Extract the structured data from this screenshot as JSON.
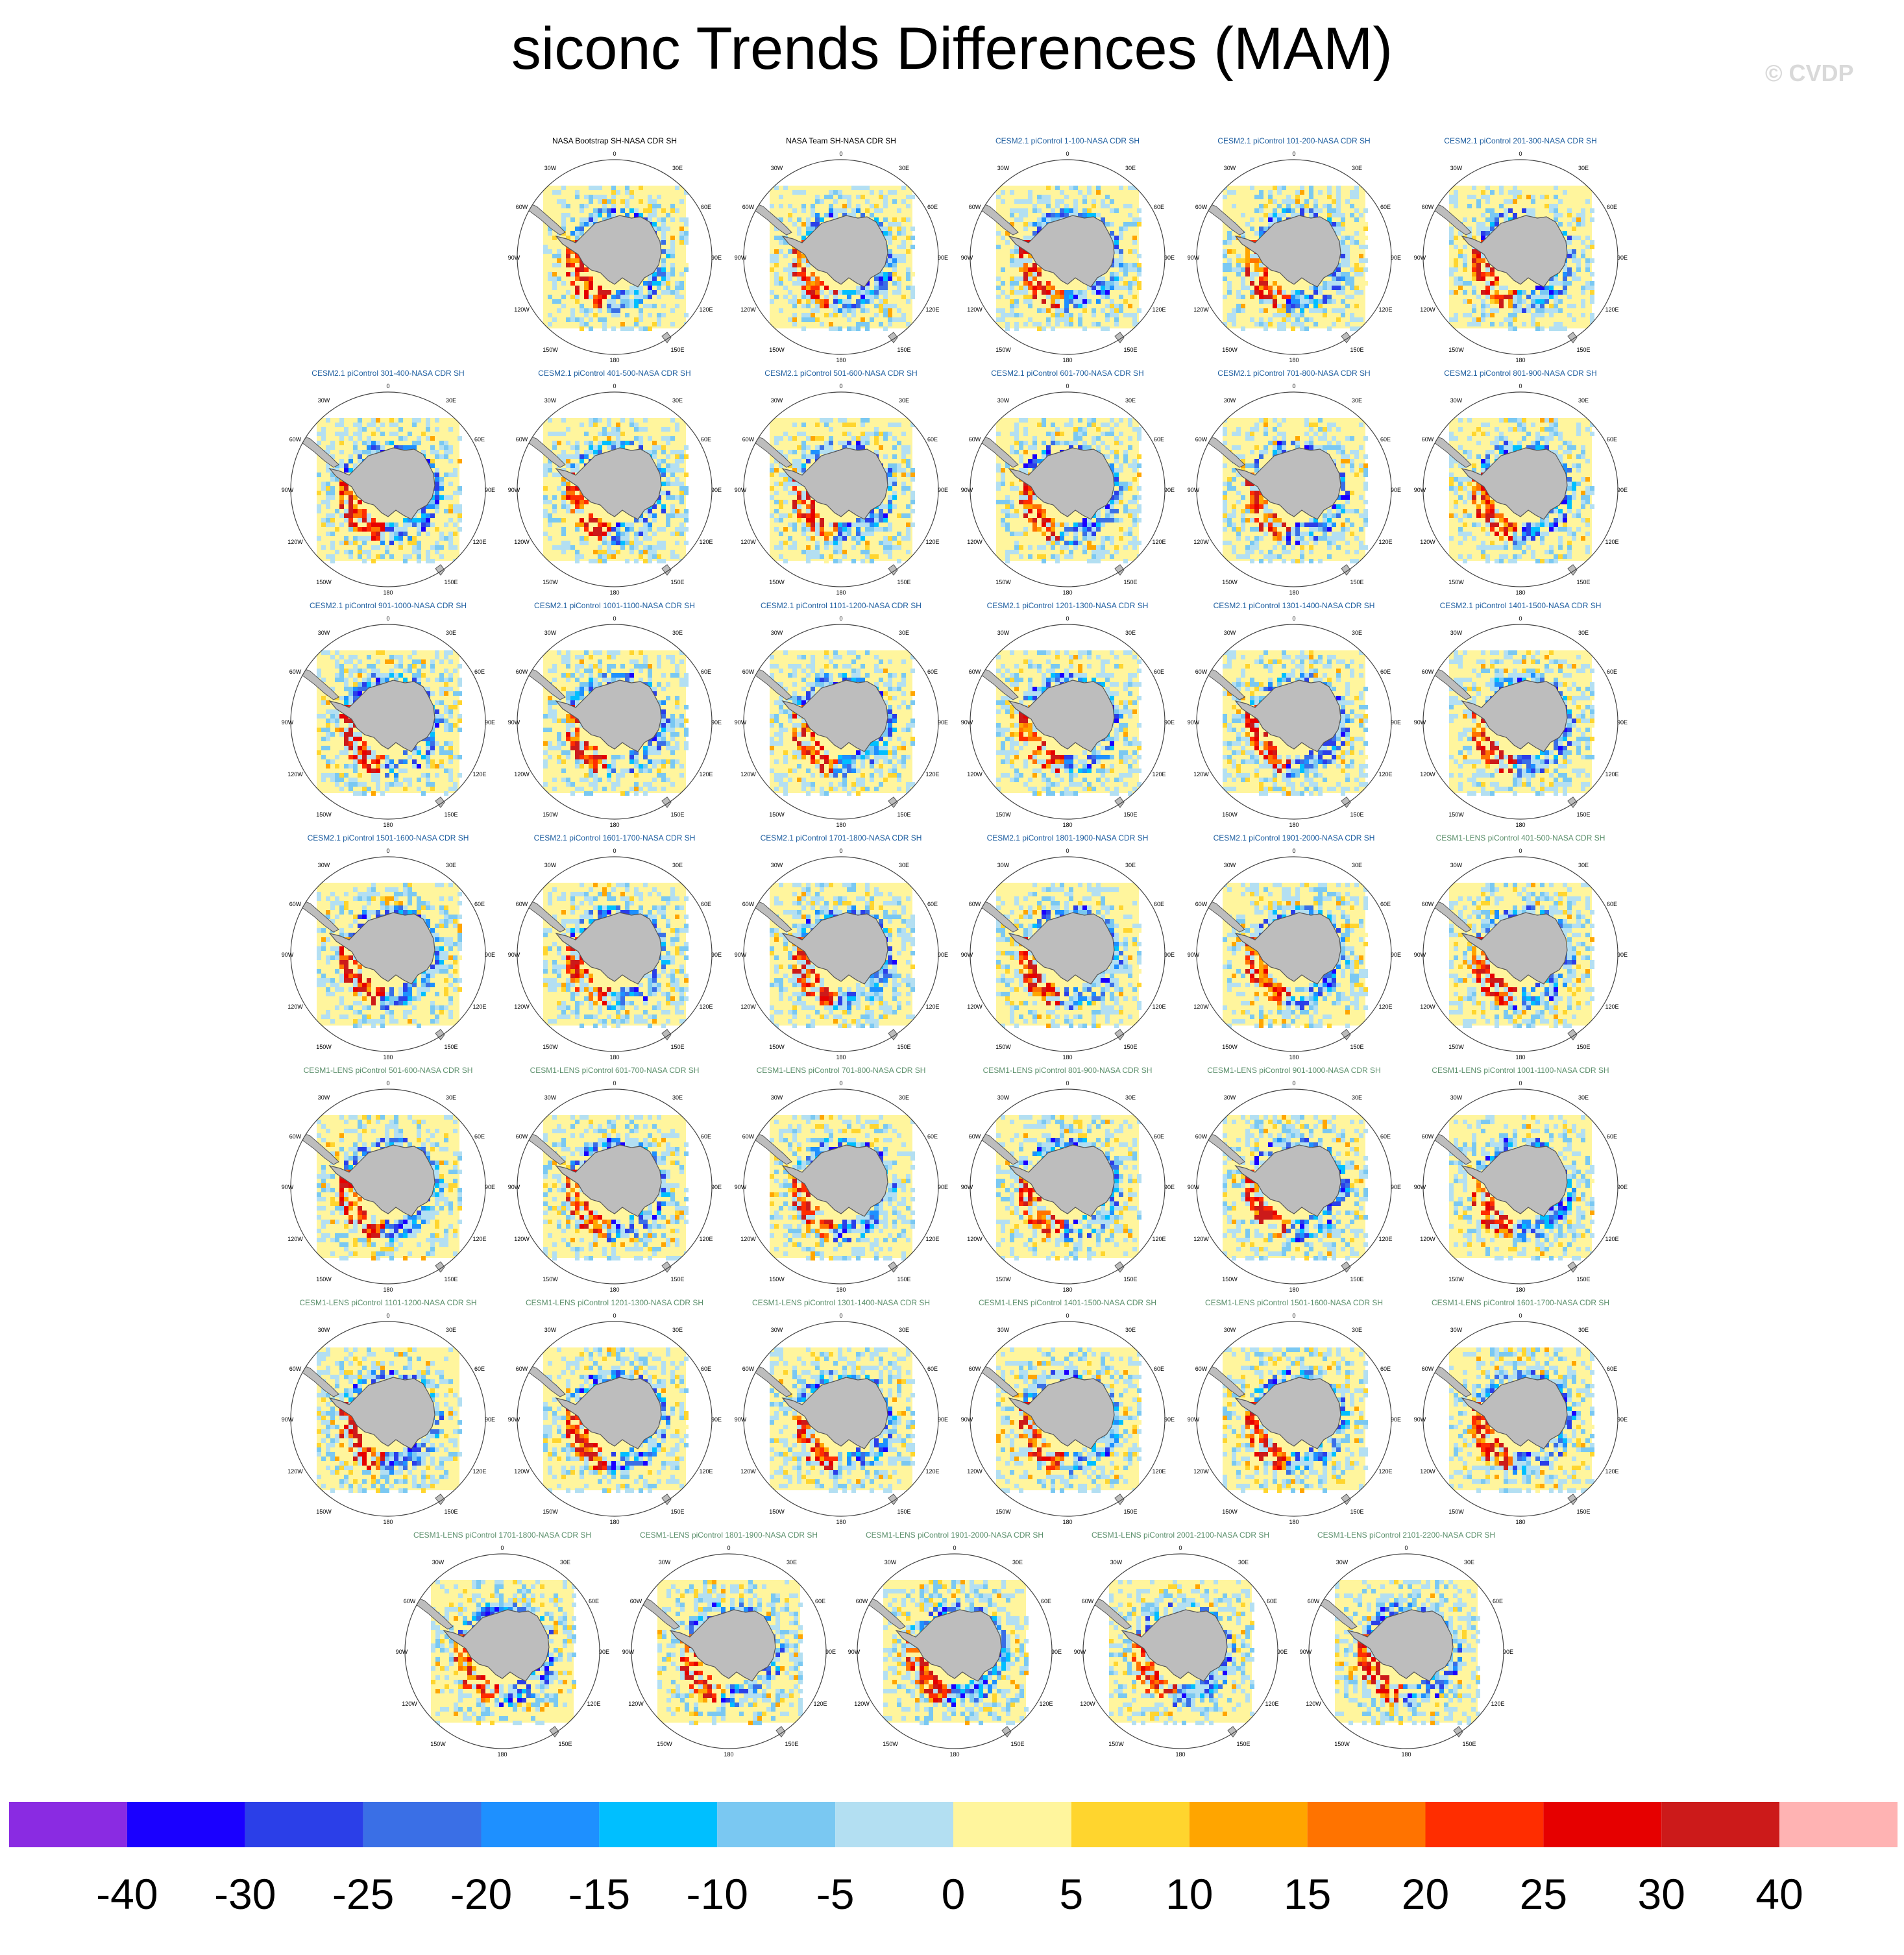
{
  "title": "siconc Trends Differences (MAM)",
  "watermark": "© CVDP",
  "colors": {
    "land": "#bdbdbd",
    "ocean_bg": "#fff59d",
    "title_obs": "#000000",
    "title_cesm2": "#1f5fa0",
    "title_cesm1": "#5b8f6b"
  },
  "map_labels": {
    "top": "0",
    "bottom": "180",
    "left": "90W",
    "right": "90E",
    "upper_left": "30W",
    "upper_right": "30E",
    "mid_left_upper": "60W",
    "mid_right_upper": "60E",
    "mid_left_lower": "120W",
    "mid_right_lower": "120E",
    "lower_left": "150W",
    "lower_right": "150E"
  },
  "rows": [
    {
      "panels": [
        {
          "title": "NASA Bootstrap SH-NASA CDR SH",
          "group": "obs",
          "seed": 1
        },
        {
          "title": "NASA Team SH-NASA CDR SH",
          "group": "obs",
          "seed": 2
        },
        {
          "title": "CESM2.1 piControl 1-100-NASA CDR SH",
          "group": "cesm2",
          "seed": 3
        },
        {
          "title": "CESM2.1 piControl 101-200-NASA CDR SH",
          "group": "cesm2",
          "seed": 4
        },
        {
          "title": "CESM2.1 piControl 201-300-NASA CDR SH",
          "group": "cesm2",
          "seed": 5
        }
      ]
    },
    {
      "panels": [
        {
          "title": "CESM2.1 piControl 301-400-NASA CDR SH",
          "group": "cesm2",
          "seed": 6
        },
        {
          "title": "CESM2.1 piControl 401-500-NASA CDR SH",
          "group": "cesm2",
          "seed": 7
        },
        {
          "title": "CESM2.1 piControl 501-600-NASA CDR SH",
          "group": "cesm2",
          "seed": 8
        },
        {
          "title": "CESM2.1 piControl 601-700-NASA CDR SH",
          "group": "cesm2",
          "seed": 9
        },
        {
          "title": "CESM2.1 piControl 701-800-NASA CDR SH",
          "group": "cesm2",
          "seed": 10
        },
        {
          "title": "CESM2.1 piControl 801-900-NASA CDR SH",
          "group": "cesm2",
          "seed": 11
        }
      ]
    },
    {
      "panels": [
        {
          "title": "CESM2.1 piControl 901-1000-NASA CDR SH",
          "group": "cesm2",
          "seed": 12
        },
        {
          "title": "CESM2.1 piControl 1001-1100-NASA CDR SH",
          "group": "cesm2",
          "seed": 13
        },
        {
          "title": "CESM2.1 piControl 1101-1200-NASA CDR SH",
          "group": "cesm2",
          "seed": 14
        },
        {
          "title": "CESM2.1 piControl 1201-1300-NASA CDR SH",
          "group": "cesm2",
          "seed": 15
        },
        {
          "title": "CESM2.1 piControl 1301-1400-NASA CDR SH",
          "group": "cesm2",
          "seed": 16
        },
        {
          "title": "CESM2.1 piControl 1401-1500-NASA CDR SH",
          "group": "cesm2",
          "seed": 17
        }
      ]
    },
    {
      "panels": [
        {
          "title": "CESM2.1 piControl 1501-1600-NASA CDR SH",
          "group": "cesm2",
          "seed": 18
        },
        {
          "title": "CESM2.1 piControl 1601-1700-NASA CDR SH",
          "group": "cesm2",
          "seed": 19
        },
        {
          "title": "CESM2.1 piControl 1701-1800-NASA CDR SH",
          "group": "cesm2",
          "seed": 20
        },
        {
          "title": "CESM2.1 piControl 1801-1900-NASA CDR SH",
          "group": "cesm2",
          "seed": 21
        },
        {
          "title": "CESM2.1 piControl 1901-2000-NASA CDR SH",
          "group": "cesm2",
          "seed": 22
        },
        {
          "title": "CESM1-LENS piControl 401-500-NASA CDR SH",
          "group": "cesm1",
          "seed": 23
        }
      ]
    },
    {
      "panels": [
        {
          "title": "CESM1-LENS piControl 501-600-NASA CDR SH",
          "group": "cesm1",
          "seed": 24
        },
        {
          "title": "CESM1-LENS piControl 601-700-NASA CDR SH",
          "group": "cesm1",
          "seed": 25
        },
        {
          "title": "CESM1-LENS piControl 701-800-NASA CDR SH",
          "group": "cesm1",
          "seed": 26
        },
        {
          "title": "CESM1-LENS piControl 801-900-NASA CDR SH",
          "group": "cesm1",
          "seed": 27
        },
        {
          "title": "CESM1-LENS piControl 901-1000-NASA CDR SH",
          "group": "cesm1",
          "seed": 28
        },
        {
          "title": "CESM1-LENS piControl 1001-1100-NASA CDR SH",
          "group": "cesm1",
          "seed": 29
        }
      ]
    },
    {
      "panels": [
        {
          "title": "CESM1-LENS piControl 1101-1200-NASA CDR SH",
          "group": "cesm1",
          "seed": 30
        },
        {
          "title": "CESM1-LENS piControl 1201-1300-NASA CDR SH",
          "group": "cesm1",
          "seed": 31
        },
        {
          "title": "CESM1-LENS piControl 1301-1400-NASA CDR SH",
          "group": "cesm1",
          "seed": 32
        },
        {
          "title": "CESM1-LENS piControl 1401-1500-NASA CDR SH",
          "group": "cesm1",
          "seed": 33
        },
        {
          "title": "CESM1-LENS piControl 1501-1600-NASA CDR SH",
          "group": "cesm1",
          "seed": 34
        },
        {
          "title": "CESM1-LENS piControl 1601-1700-NASA CDR SH",
          "group": "cesm1",
          "seed": 35
        }
      ]
    },
    {
      "panels": [
        {
          "title": "CESM1-LENS piControl 1701-1800-NASA CDR SH",
          "group": "cesm1",
          "seed": 36
        },
        {
          "title": "CESM1-LENS piControl 1801-1900-NASA CDR SH",
          "group": "cesm1",
          "seed": 37
        },
        {
          "title": "CESM1-LENS piControl 1901-2000-NASA CDR SH",
          "group": "cesm1",
          "seed": 38
        },
        {
          "title": "CESM1-LENS piControl 2001-2100-NASA CDR SH",
          "group": "cesm1",
          "seed": 39
        },
        {
          "title": "CESM1-LENS piControl 2101-2200-NASA CDR SH",
          "group": "cesm1",
          "seed": 40
        }
      ]
    }
  ],
  "colorbar": {
    "labels": [
      "-40",
      "-30",
      "-25",
      "-20",
      "-15",
      "-10",
      "-5",
      "0",
      "5",
      "10",
      "15",
      "20",
      "25",
      "30",
      "40"
    ],
    "colors": [
      "#8a2be2",
      "#1a00ff",
      "#2b3fe8",
      "#3a6fe6",
      "#1e90ff",
      "#00bfff",
      "#7ac8f2",
      "#b3dff2",
      "#fff59d",
      "#ffd52e",
      "#ffa500",
      "#ff7300",
      "#ff2d00",
      "#e60000",
      "#cc1a1a",
      "#ffb3b3"
    ]
  }
}
